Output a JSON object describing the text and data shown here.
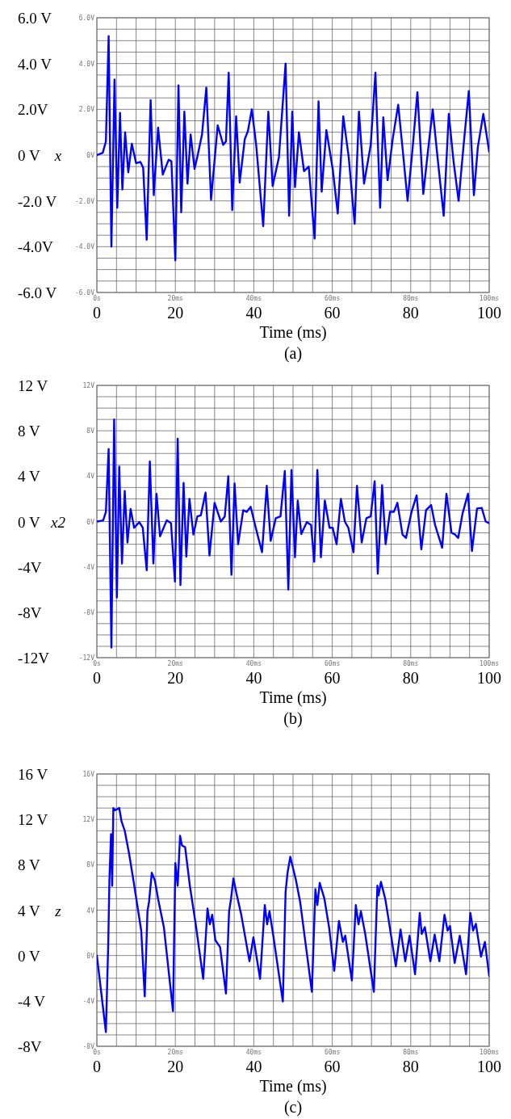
{
  "chart_data": [
    {
      "type": "line",
      "title": "(a)",
      "xlabel": "Time (ms)",
      "ylabel": "x",
      "grid": true,
      "line_style": "solid",
      "xlim": [
        0,
        100
      ],
      "ylim": [
        -6,
        6
      ],
      "xticks": [
        0,
        {
          "value": 5,
          "label": null
        },
        {
          "value": 10,
          "label": null
        },
        {
          "value": 15,
          "label": null
        },
        20,
        {
          "value": 25,
          "label": null
        },
        {
          "value": 30,
          "label": null
        },
        {
          "value": 35,
          "label": null
        },
        40,
        {
          "value": 45,
          "label": null
        },
        {
          "value": 50,
          "label": null
        },
        {
          "value": 55,
          "label": null
        },
        60,
        {
          "value": 65,
          "label": null
        },
        {
          "value": 70,
          "label": null
        },
        {
          "value": 75,
          "label": null
        },
        80,
        {
          "value": 85,
          "label": null
        },
        {
          "value": 90,
          "label": null
        },
        {
          "value": 95,
          "label": null
        },
        100
      ],
      "yticks": [
        {
          "value": 6,
          "label": "6.0 V"
        },
        {
          "value": 5.5,
          "label": null
        },
        {
          "value": 5,
          "label": null
        },
        {
          "value": 4.5,
          "label": null
        },
        {
          "value": 4,
          "label": "4.0 V"
        },
        {
          "value": 3.5,
          "label": null
        },
        {
          "value": 3,
          "label": null
        },
        {
          "value": 2.5,
          "label": null
        },
        {
          "value": 2,
          "label": "2.0V"
        },
        {
          "value": 1.5,
          "label": null
        },
        {
          "value": 1,
          "label": null
        },
        {
          "value": 0.5,
          "label": null
        },
        {
          "value": 0,
          "label": "0 V"
        },
        {
          "value": -0.5,
          "label": null
        },
        {
          "value": -1,
          "label": null
        },
        {
          "value": -1.5,
          "label": null
        },
        {
          "value": -2,
          "label": "-2.0 V"
        },
        {
          "value": -2.5,
          "label": null
        },
        {
          "value": -3,
          "label": null
        },
        {
          "value": -3.5,
          "label": null
        },
        {
          "value": -4,
          "label": "-4.0V"
        },
        {
          "value": -4.5,
          "label": null
        },
        {
          "value": -5,
          "label": null
        },
        {
          "value": -5.5,
          "label": null
        },
        {
          "value": -6,
          "label": "-6.0 V"
        }
      ],
      "x2lim": [
        0,
        100
      ],
      "x2ticks": [
        {
          "value": 0,
          "label": "0s"
        },
        {
          "value": 20,
          "label": "20ms"
        },
        {
          "value": 40,
          "label": "40ms"
        },
        {
          "value": 60,
          "label": "60ms"
        },
        {
          "value": 80,
          "label": "80ms"
        },
        {
          "value": 100,
          "label": "100ms"
        }
      ],
      "y2lim": [
        -6,
        6
      ],
      "y2ticks": [
        {
          "value": 6,
          "label": "6.0V"
        },
        {
          "value": 4,
          "label": "4.0V"
        },
        {
          "value": 2,
          "label": "2.0V"
        },
        {
          "value": 0,
          "label": "0V"
        },
        {
          "value": -2,
          "label": "-2.0V"
        },
        {
          "value": -4,
          "label": "-4.0V"
        },
        {
          "value": -6,
          "label": "-6.0V"
        }
      ],
      "x": [
        0,
        1.5,
        2.3,
        3.0,
        3.7,
        4.5,
        5.2,
        5.9,
        6.5,
        7.2,
        8.0,
        8.9,
        10.0,
        11.1,
        11.8,
        12.7,
        13.7,
        14.5,
        15.6,
        16.8,
        18.3,
        19.0,
        20.0,
        20.8,
        21.5,
        22.3,
        23.1,
        23.9,
        24.9,
        25.7,
        26.8,
        27.9,
        29.1,
        30.8,
        32.2,
        32.9,
        33.6,
        34.5,
        35.5,
        36.4,
        37.7,
        38.5,
        39.5,
        40.6,
        42.4,
        43.7,
        44.8,
        46.4,
        48.1,
        49.0,
        49.8,
        50.5,
        51.5,
        52.8,
        54.0,
        55.5,
        56.5,
        57.3,
        58.5,
        60.1,
        61.4,
        62.8,
        64.2,
        65.7,
        66.8,
        68.1,
        69.8,
        71.0,
        72.2,
        73.0,
        74.1,
        75.4,
        76.8,
        78.0,
        79.2,
        80.5,
        81.7,
        83.2,
        84.5,
        85.6,
        86.8,
        88.4,
        89.7,
        90.9,
        92.2,
        93.4,
        94.8,
        96.1,
        97.1,
        98.5,
        100
      ],
      "series": [
        {
          "color": "#0000ff",
          "values": [
            0,
            0.1,
            0.6,
            5.2,
            -4.0,
            3.3,
            -2.3,
            1.85,
            -1.5,
            1.0,
            -0.75,
            0.5,
            -0.35,
            -0.3,
            -0.55,
            -3.7,
            2.4,
            -1.75,
            1.2,
            -0.85,
            -0.2,
            -0.27,
            -4.6,
            3.05,
            -2.5,
            1.9,
            -1.25,
            0.9,
            -0.6,
            0,
            0.9,
            2.95,
            -1.95,
            1.3,
            0.45,
            0.6,
            3.6,
            -2.4,
            1.7,
            -1.2,
            0.7,
            1.05,
            2.0,
            0.45,
            -3.1,
            1.9,
            -1.35,
            -0.1,
            4.0,
            -2.65,
            1.9,
            -1.4,
            1.0,
            -0.7,
            -0.5,
            -3.65,
            2.35,
            -1.6,
            1.1,
            -0.6,
            -2.55,
            1.7,
            -0.1,
            -3.0,
            1.9,
            -1.25,
            0.45,
            3.6,
            -2.3,
            1.65,
            -1.1,
            0.7,
            2.2,
            0.15,
            -2.0,
            0.35,
            2.75,
            -1.7,
            0.35,
            2.0,
            -0.05,
            -2.65,
            1.8,
            -0.25,
            -2.0,
            0.3,
            2.8,
            -1.75,
            0.35,
            1.8,
            0.15
          ]
        }
      ]
    },
    {
      "type": "line",
      "title": "(b)",
      "xlabel": "Time (ms)",
      "ylabel": "x2",
      "grid": true,
      "line_style": "solid",
      "xlim": [
        0,
        100
      ],
      "ylim": [
        -12,
        12
      ],
      "xticks": [
        0,
        {
          "value": 5,
          "label": null
        },
        {
          "value": 10,
          "label": null
        },
        {
          "value": 15,
          "label": null
        },
        20,
        {
          "value": 25,
          "label": null
        },
        {
          "value": 30,
          "label": null
        },
        {
          "value": 35,
          "label": null
        },
        40,
        {
          "value": 45,
          "label": null
        },
        {
          "value": 50,
          "label": null
        },
        {
          "value": 55,
          "label": null
        },
        60,
        {
          "value": 65,
          "label": null
        },
        {
          "value": 70,
          "label": null
        },
        {
          "value": 75,
          "label": null
        },
        80,
        {
          "value": 85,
          "label": null
        },
        {
          "value": 90,
          "label": null
        },
        {
          "value": 95,
          "label": null
        },
        100
      ],
      "yticks": [
        {
          "value": 12,
          "label": "12 V"
        },
        {
          "value": 11,
          "label": null
        },
        {
          "value": 10,
          "label": null
        },
        {
          "value": 9,
          "label": null
        },
        {
          "value": 8,
          "label": "8 V"
        },
        {
          "value": 7,
          "label": null
        },
        {
          "value": 6,
          "label": null
        },
        {
          "value": 5,
          "label": null
        },
        {
          "value": 4,
          "label": "4 V"
        },
        {
          "value": 3,
          "label": null
        },
        {
          "value": 2,
          "label": null
        },
        {
          "value": 1,
          "label": null
        },
        {
          "value": 0,
          "label": "0 V"
        },
        {
          "value": -1,
          "label": null
        },
        {
          "value": -2,
          "label": null
        },
        {
          "value": -3,
          "label": null
        },
        {
          "value": -4,
          "label": "-4V"
        },
        {
          "value": -5,
          "label": null
        },
        {
          "value": -6,
          "label": null
        },
        {
          "value": -7,
          "label": null
        },
        {
          "value": -8,
          "label": "-8V"
        },
        {
          "value": -9,
          "label": null
        },
        {
          "value": -10,
          "label": null
        },
        {
          "value": -11,
          "label": null
        },
        {
          "value": -12,
          "label": "-12V"
        }
      ],
      "x2lim": [
        0,
        100
      ],
      "x2ticks": [
        {
          "value": 0,
          "label": "0s"
        },
        {
          "value": 20,
          "label": "20ms"
        },
        {
          "value": 40,
          "label": "40ms"
        },
        {
          "value": 60,
          "label": "60ms"
        },
        {
          "value": 80,
          "label": "80ms"
        },
        {
          "value": 100,
          "label": "100ms"
        }
      ],
      "y2lim": [
        -12,
        12
      ],
      "y2ticks": [
        {
          "value": 12,
          "label": "12V"
        },
        {
          "value": 8,
          "label": "8V"
        },
        {
          "value": 4,
          "label": "4V"
        },
        {
          "value": 0,
          "label": "0V"
        },
        {
          "value": -4,
          "label": "-4V"
        },
        {
          "value": -8,
          "label": "-8V"
        },
        {
          "value": -12,
          "label": "-12V"
        }
      ],
      "x": [
        0,
        1.6,
        2.3,
        3.0,
        3.7,
        4.4,
        5.1,
        5.7,
        6.4,
        7.1,
        7.8,
        8.6,
        9.5,
        10.8,
        11.7,
        12.7,
        13.5,
        14.4,
        15.2,
        16.1,
        17.8,
        18.9,
        19.9,
        20.6,
        21.3,
        22.1,
        22.8,
        23.6,
        24.6,
        25.6,
        26.5,
        27.7,
        28.7,
        30.0,
        31.6,
        32.6,
        33.5,
        34.3,
        35.1,
        36.0,
        37.3,
        38.2,
        39.2,
        40.6,
        42.1,
        43.3,
        44.3,
        45.6,
        46.8,
        47.9,
        48.8,
        49.6,
        50.5,
        51.2,
        52.1,
        53.5,
        54.6,
        55.4,
        56.2,
        57.1,
        58.1,
        59.3,
        60.1,
        61.1,
        62.2,
        63.2,
        64.1,
        65.4,
        66.3,
        67.5,
        68.7,
        69.8,
        70.8,
        71.6,
        72.7,
        73.6,
        74.7,
        75.7,
        76.6,
        77.9,
        78.8,
        80.2,
        81.5,
        82.7,
        83.9,
        85.2,
        86.2,
        88.0,
        89.1,
        90.4,
        91.3,
        92.1,
        93.2,
        94.6,
        95.6,
        96.9,
        98.1,
        99.1,
        100
      ],
      "series": [
        {
          "color": "#0000ff",
          "values": [
            0,
            0.1,
            0.85,
            6.4,
            -11.1,
            9.0,
            -6.7,
            4.85,
            -3.7,
            2.7,
            -1.85,
            1.1,
            -0.55,
            -0.05,
            -0.55,
            -4.3,
            5.3,
            -3.7,
            2.45,
            -1.3,
            0.1,
            -0.15,
            -5.3,
            7.3,
            -5.6,
            3.4,
            -3.1,
            2.0,
            -1.15,
            0.45,
            0.55,
            2.55,
            -3.0,
            1.65,
            0,
            0.45,
            4.0,
            -4.7,
            3.35,
            -2.0,
            1.0,
            0.85,
            1.3,
            -0.7,
            -2.7,
            3.15,
            -1.7,
            0.3,
            0.45,
            4.45,
            -6.0,
            4.55,
            -3.15,
            1.85,
            -1.1,
            -0.05,
            -0.3,
            -3.55,
            4.55,
            -3.15,
            1.85,
            -0.55,
            -0.55,
            -2.0,
            2.0,
            0,
            -0.55,
            -2.7,
            3.15,
            -1.85,
            0.3,
            0.45,
            3.55,
            -4.6,
            3.2,
            -2.0,
            0.85,
            0.85,
            1.65,
            -1.15,
            -1.45,
            0.85,
            2.3,
            -2.45,
            1.0,
            1.45,
            -0.3,
            -2.3,
            2.45,
            -1.0,
            -1.15,
            -1.45,
            0.7,
            2.45,
            -2.6,
            1.15,
            1.2,
            0,
            -0.15
          ]
        }
      ]
    },
    {
      "type": "line",
      "title": "(c)",
      "xlabel": "Time (ms)",
      "ylabel": "z",
      "grid": true,
      "line_style": "solid",
      "xlim": [
        0,
        100
      ],
      "ylim": [
        -8,
        16
      ],
      "xticks": [
        0,
        {
          "value": 5,
          "label": null
        },
        {
          "value": 10,
          "label": null
        },
        {
          "value": 15,
          "label": null
        },
        20,
        {
          "value": 25,
          "label": null
        },
        {
          "value": 30,
          "label": null
        },
        {
          "value": 35,
          "label": null
        },
        40,
        {
          "value": 45,
          "label": null
        },
        {
          "value": 50,
          "label": null
        },
        {
          "value": 55,
          "label": null
        },
        60,
        {
          "value": 65,
          "label": null
        },
        {
          "value": 70,
          "label": null
        },
        {
          "value": 75,
          "label": null
        },
        80,
        {
          "value": 85,
          "label": null
        },
        {
          "value": 90,
          "label": null
        },
        {
          "value": 95,
          "label": null
        },
        100
      ],
      "yticks": [
        {
          "value": 16,
          "label": "16 V"
        },
        {
          "value": 15,
          "label": null
        },
        {
          "value": 14,
          "label": null
        },
        {
          "value": 13,
          "label": null
        },
        {
          "value": 12,
          "label": "12 V"
        },
        {
          "value": 11,
          "label": null
        },
        {
          "value": 10,
          "label": null
        },
        {
          "value": 9,
          "label": null
        },
        {
          "value": 8,
          "label": "8 V"
        },
        {
          "value": 7,
          "label": null
        },
        {
          "value": 6,
          "label": null
        },
        {
          "value": 5,
          "label": null
        },
        {
          "value": 4,
          "label": "4 V"
        },
        {
          "value": 3,
          "label": null
        },
        {
          "value": 2,
          "label": null
        },
        {
          "value": 1,
          "label": null
        },
        {
          "value": 0,
          "label": "0 V"
        },
        {
          "value": -1,
          "label": null
        },
        {
          "value": -2,
          "label": null
        },
        {
          "value": -3,
          "label": null
        },
        {
          "value": -4,
          "label": "-4 V"
        },
        {
          "value": -5,
          "label": null
        },
        {
          "value": -6,
          "label": null
        },
        {
          "value": -7,
          "label": null
        },
        {
          "value": -8,
          "label": "-8V"
        }
      ],
      "x2lim": [
        0,
        100
      ],
      "x2ticks": [
        {
          "value": 0,
          "label": "0s"
        },
        {
          "value": 20,
          "label": "20ms"
        },
        {
          "value": 40,
          "label": "40ms"
        },
        {
          "value": 60,
          "label": "60ms"
        },
        {
          "value": 80,
          "label": "80ms"
        },
        {
          "value": 100,
          "label": "100ms"
        }
      ],
      "y2lim": [
        -8,
        16
      ],
      "y2ticks": [
        {
          "value": 16,
          "label": "16V"
        },
        {
          "value": 12,
          "label": "12V"
        },
        {
          "value": 8,
          "label": "8V"
        },
        {
          "value": 4,
          "label": "4V"
        },
        {
          "value": 0,
          "label": "0V"
        },
        {
          "value": -4,
          "label": "-4V"
        },
        {
          "value": -8,
          "label": "-8V"
        }
      ],
      "x": [
        0,
        2.3,
        2.9,
        3.2,
        3.6,
        3.9,
        4.2,
        4.6,
        5.2,
        5.7,
        6.3,
        7.1,
        8.2,
        9.4,
        11.3,
        12.2,
        12.9,
        13.3,
        14.0,
        14.8,
        15.6,
        17.1,
        19.4,
        20.0,
        20.6,
        21.2,
        21.7,
        22.5,
        23.7,
        25.2,
        27.1,
        28.2,
        28.8,
        29.4,
        30.2,
        31.4,
        32.9,
        33.7,
        34.2,
        34.8,
        35.6,
        36.8,
        38.9,
        39.9,
        41.6,
        42.8,
        43.4,
        44.0,
        44.9,
        47.4,
        48.1,
        48.6,
        49.3,
        49.9,
        50.7,
        51.8,
        54.8,
        55.7,
        56.2,
        56.8,
        58.0,
        59.2,
        60.5,
        61.7,
        62.7,
        63.3,
        65.0,
        66.0,
        66.7,
        67.3,
        68.4,
        70.6,
        71.5,
        71.8,
        72.4,
        73.5,
        74.3,
        76.2,
        77.4,
        78.6,
        79.7,
        81.1,
        82.3,
        82.8,
        83.6,
        85.0,
        86.1,
        87.3,
        88.6,
        89.4,
        90.0,
        91.2,
        92.5,
        94.1,
        95.2,
        95.9,
        96.6,
        97.9,
        98.9,
        100
      ],
      "series": [
        {
          "color": "#0000ff",
          "values": [
            0,
            -6.75,
            1.05,
            6.7,
            10.7,
            6.15,
            13.0,
            12.8,
            12.9,
            13.0,
            11.8,
            11.0,
            9.0,
            6.45,
            2.2,
            -3.6,
            3.9,
            4.75,
            7.3,
            6.6,
            5.0,
            2.45,
            -4.9,
            8.15,
            6.15,
            10.55,
            9.7,
            9.55,
            6.15,
            2.75,
            -2.05,
            4.15,
            2.75,
            3.6,
            1.35,
            0.75,
            -3.35,
            3.9,
            5.0,
            6.8,
            5.45,
            3.6,
            -0.5,
            1.6,
            -2.05,
            4.45,
            2.75,
            3.9,
            1.9,
            -4.05,
            5.6,
            7.3,
            8.7,
            7.85,
            6.7,
            4.75,
            -3.2,
            5.85,
            4.45,
            6.4,
            5.0,
            2.45,
            -1.35,
            3.05,
            1.2,
            1.75,
            -2.2,
            4.45,
            2.75,
            3.9,
            1.9,
            -3.2,
            6.15,
            5.3,
            6.5,
            5.0,
            3.3,
            -0.95,
            2.3,
            -0.5,
            1.75,
            -1.65,
            3.75,
            1.9,
            2.5,
            -0.5,
            1.85,
            -0.5,
            3.6,
            2.2,
            2.6,
            -0.65,
            1.75,
            -1.65,
            3.75,
            2.2,
            2.8,
            -0.1,
            1.2,
            -1.8
          ]
        }
      ]
    }
  ]
}
